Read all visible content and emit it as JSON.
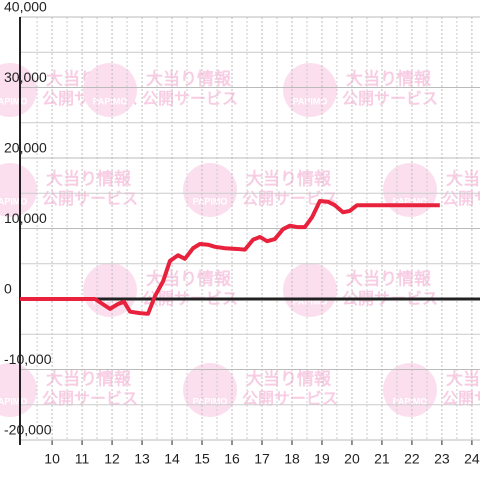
{
  "chart_data": {
    "type": "line",
    "watermark": {
      "logo": "PAPIMO",
      "line1": "大当り情報",
      "line2": "公開サービス"
    },
    "x": [
      8.93,
      11.43,
      11.93,
      12.2,
      12.4,
      12.6,
      12.93,
      13.2,
      13.43,
      13.7,
      13.93,
      14.2,
      14.43,
      14.7,
      14.93,
      15.2,
      15.43,
      15.77,
      16.17,
      16.43,
      16.7,
      16.93,
      17.17,
      17.43,
      17.7,
      17.93,
      18.17,
      18.43,
      18.67,
      18.93,
      19.2,
      19.43,
      19.7,
      19.93,
      20.17,
      22.93
    ],
    "series": [
      {
        "color": "#e8223c",
        "values": [
          0,
          0,
          -1400,
          -700,
          -400,
          -1800,
          -2000,
          -2100,
          400,
          2500,
          5400,
          6200,
          5700,
          7200,
          7800,
          7700,
          7400,
          7200,
          7100,
          7000,
          8400,
          8800,
          8200,
          8500,
          9900,
          10400,
          10200,
          10200,
          11600,
          13900,
          13800,
          13300,
          12300,
          12500,
          13300,
          13300
        ]
      }
    ],
    "xlim": [
      8.93,
      24.27
    ],
    "xticks": [
      10,
      11,
      12,
      13,
      14,
      15,
      16,
      17,
      18,
      19,
      20,
      21,
      22,
      23,
      24
    ],
    "ylim": [
      -20000,
      40000
    ],
    "yticks": [
      {
        "value": -20000,
        "label": "-20,000"
      },
      {
        "value": -10000,
        "label": "-10,000"
      },
      0,
      {
        "value": 10000,
        "label": "10,000"
      },
      {
        "value": 20000,
        "label": "20,000"
      },
      {
        "value": 30000,
        "label": "30,000"
      },
      {
        "value": 40000,
        "label": "40,000"
      }
    ],
    "grid": true
  }
}
